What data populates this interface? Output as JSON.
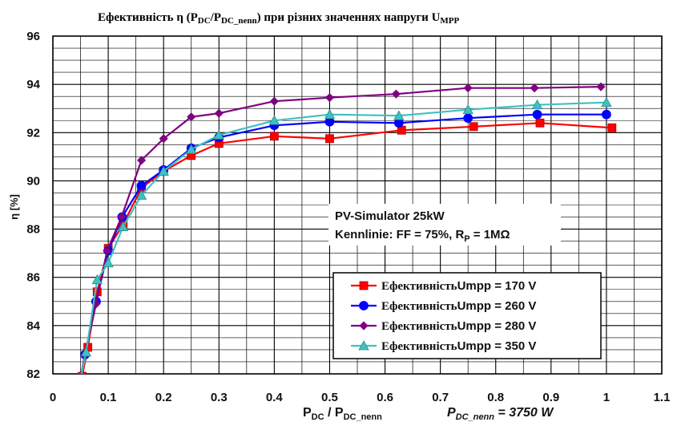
{
  "chart_data": {
    "type": "line",
    "title_parts": {
      "prefix": "Ефективність  η (P",
      "sub1": "DC",
      "mid": "/P",
      "sub2": "DC_nenn",
      "suffix": ") при різних значеннях напруги U",
      "sub3": "MPP"
    },
    "ylabel": "η [%]",
    "xlabel_parts": {
      "p1": "P",
      "s1": "DC",
      "p2": " / P",
      "s2": "DC_nenn"
    },
    "extra_label_parts": {
      "p1": "P",
      "s1": "DC_nenn",
      "p2": " = 3750 W"
    },
    "info_box": {
      "line1": "PV-Simulator 25kW",
      "line2_prefix": "Kennlinie: FF = 75%, R",
      "line2_sub": "P",
      "line2_suffix": " = 1MΩ"
    },
    "xlim": [
      0,
      1.1
    ],
    "ylim": [
      82,
      96
    ],
    "x_ticks": [
      "0",
      "0.1",
      "0.2",
      "0.3",
      "0.4",
      "0.5",
      "0.6",
      "0.7",
      "0.8",
      "0.9",
      "1",
      "1.1"
    ],
    "y_ticks": [
      "82",
      "84",
      "86",
      "88",
      "90",
      "92",
      "94",
      "96"
    ],
    "grid": true,
    "legend_position": "bottom-right",
    "series": [
      {
        "name": "Ефективність Umpp = 170 V",
        "name_label": "Ефективність",
        "name_value": "Umpp = 170 V",
        "color": "#ff0000",
        "marker": "square",
        "x": [
          0.053,
          0.063,
          0.08,
          0.1,
          0.127,
          0.16,
          0.2,
          0.25,
          0.3,
          0.4,
          0.5,
          0.63,
          0.76,
          0.88,
          1.01
        ],
        "y": [
          81.9,
          83.1,
          85.4,
          87.2,
          88.2,
          89.7,
          90.4,
          91.05,
          91.55,
          91.85,
          91.75,
          92.1,
          92.25,
          92.4,
          92.2
        ]
      },
      {
        "name": "Ефективність Umpp = 260 V",
        "name_label": "Ефективність",
        "name_value": "Umpp = 260 V",
        "color": "#0000ff",
        "marker": "circle",
        "x": [
          0.05,
          0.058,
          0.078,
          0.1,
          0.125,
          0.16,
          0.2,
          0.25,
          0.3,
          0.4,
          0.5,
          0.625,
          0.75,
          0.875,
          1.0
        ],
        "y": [
          81.8,
          82.8,
          85.0,
          87.1,
          88.5,
          89.8,
          90.45,
          91.35,
          91.8,
          92.3,
          92.45,
          92.4,
          92.6,
          92.75,
          92.75
        ]
      },
      {
        "name": "Ефективність Umpp = 280 V",
        "name_label": "Ефективність",
        "name_value": "Umpp = 280 V",
        "color": "#800080",
        "marker": "diamond",
        "x": [
          0.05,
          0.058,
          0.078,
          0.098,
          0.124,
          0.16,
          0.2,
          0.25,
          0.3,
          0.4,
          0.5,
          0.62,
          0.75,
          0.87,
          0.99
        ],
        "y": [
          81.8,
          82.8,
          84.9,
          87.1,
          88.5,
          90.85,
          91.75,
          92.65,
          92.8,
          93.3,
          93.45,
          93.6,
          93.85,
          93.85,
          93.9
        ]
      },
      {
        "name": "Ефективність Umpp = 350 V",
        "name_label": "Ефективність",
        "name_value": "Umpp = 350 V",
        "color": "#40c0c0",
        "marker": "triangle",
        "x": [
          0.05,
          0.06,
          0.08,
          0.1,
          0.127,
          0.16,
          0.2,
          0.25,
          0.3,
          0.4,
          0.5,
          0.625,
          0.75,
          0.875,
          1.0
        ],
        "y": [
          81.8,
          82.9,
          85.9,
          86.6,
          88.1,
          89.4,
          90.4,
          91.3,
          91.9,
          92.5,
          92.75,
          92.7,
          92.95,
          93.15,
          93.25
        ]
      }
    ]
  }
}
